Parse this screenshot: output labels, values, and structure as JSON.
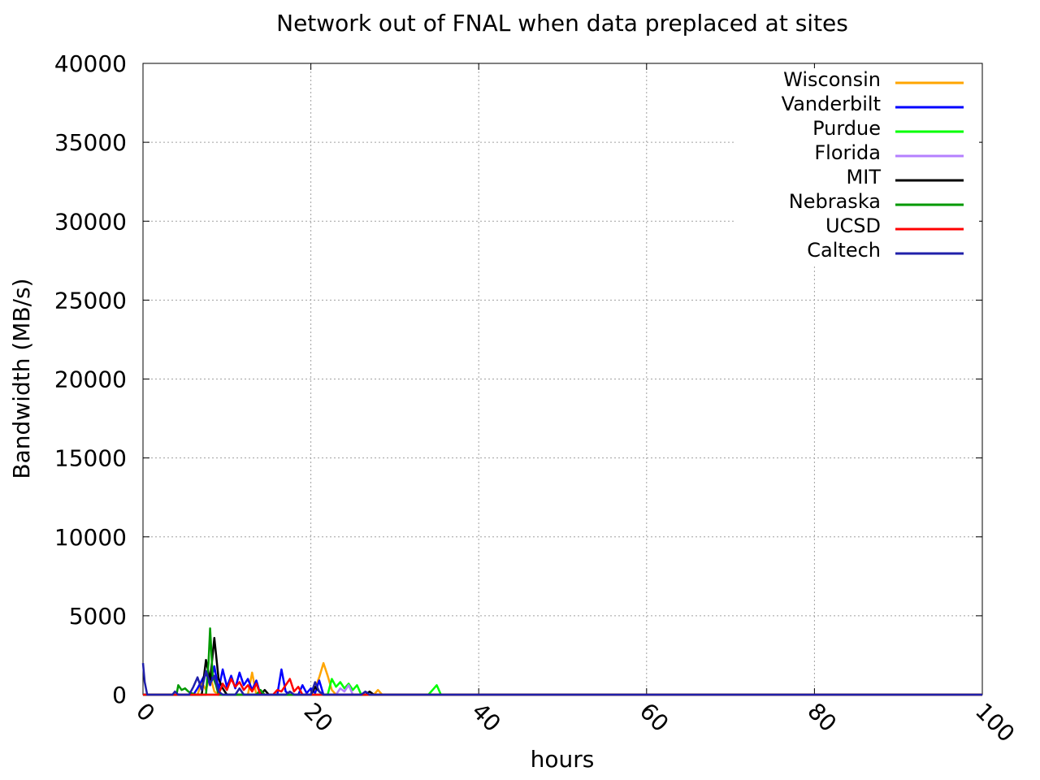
{
  "chart_data": {
    "type": "line",
    "title": "Network out of FNAL when data preplaced at sites",
    "xlabel": "hours",
    "ylabel": "Bandwidth (MB/s)",
    "xlim": [
      0,
      100
    ],
    "ylim": [
      0,
      40000
    ],
    "xticks": [
      "0",
      "20",
      "40",
      "60",
      "80",
      "100"
    ],
    "yticks": [
      "0",
      "5000",
      "10000",
      "15000",
      "20000",
      "25000",
      "30000",
      "35000",
      "40000"
    ],
    "grid": true,
    "legend_position": "top-right",
    "series": [
      {
        "name": "Wisconsin",
        "color": "#ffa500",
        "points": [
          [
            0,
            0
          ],
          [
            6.5,
            0
          ],
          [
            7,
            800
          ],
          [
            7.5,
            300
          ],
          [
            8,
            1200
          ],
          [
            8.5,
            200
          ],
          [
            9,
            0
          ],
          [
            12.5,
            0
          ],
          [
            13,
            1400
          ],
          [
            13.5,
            0
          ],
          [
            20,
            0
          ],
          [
            20.5,
            400
          ],
          [
            21,
            1100
          ],
          [
            21.5,
            2000
          ],
          [
            22,
            1200
          ],
          [
            22.5,
            300
          ],
          [
            23,
            0
          ],
          [
            27.5,
            0
          ],
          [
            28,
            300
          ],
          [
            28.5,
            0
          ],
          [
            100,
            0
          ]
        ]
      },
      {
        "name": "Vanderbilt",
        "color": "#0000ff",
        "points": [
          [
            0,
            0
          ],
          [
            6,
            0
          ],
          [
            6.5,
            400
          ],
          [
            7,
            900
          ],
          [
            7.5,
            1400
          ],
          [
            8,
            600
          ],
          [
            8.5,
            1800
          ],
          [
            9,
            300
          ],
          [
            9.5,
            1600
          ],
          [
            10,
            500
          ],
          [
            10.5,
            1200
          ],
          [
            11,
            400
          ],
          [
            11.5,
            1400
          ],
          [
            12,
            600
          ],
          [
            12.5,
            1000
          ],
          [
            13,
            300
          ],
          [
            13.5,
            900
          ],
          [
            14,
            0
          ],
          [
            16,
            0
          ],
          [
            16.5,
            1600
          ],
          [
            17,
            200
          ],
          [
            17.5,
            0
          ],
          [
            18.5,
            0
          ],
          [
            19,
            600
          ],
          [
            19.5,
            100
          ],
          [
            20,
            400
          ],
          [
            20.5,
            100
          ],
          [
            21,
            900
          ],
          [
            21.5,
            0
          ],
          [
            100,
            0
          ]
        ]
      },
      {
        "name": "Purdue",
        "color": "#00ff00",
        "points": [
          [
            0,
            0
          ],
          [
            22,
            0
          ],
          [
            22.5,
            1000
          ],
          [
            23,
            500
          ],
          [
            23.5,
            800
          ],
          [
            24,
            400
          ],
          [
            24.5,
            700
          ],
          [
            25,
            300
          ],
          [
            25.5,
            600
          ],
          [
            26,
            0
          ],
          [
            34,
            0
          ],
          [
            34.5,
            300
          ],
          [
            35,
            600
          ],
          [
            35.5,
            0
          ],
          [
            100,
            0
          ]
        ]
      },
      {
        "name": "Florida",
        "color": "#b480ff",
        "points": [
          [
            0,
            0
          ],
          [
            23,
            0
          ],
          [
            23.5,
            400
          ],
          [
            24,
            200
          ],
          [
            24.5,
            600
          ],
          [
            25,
            0
          ],
          [
            100,
            0
          ]
        ]
      },
      {
        "name": "MIT",
        "color": "#000000",
        "points": [
          [
            0,
            0
          ],
          [
            7,
            0
          ],
          [
            7.5,
            2200
          ],
          [
            8,
            900
          ],
          [
            8.5,
            3600
          ],
          [
            9,
            1000
          ],
          [
            9.5,
            400
          ],
          [
            10,
            0
          ],
          [
            14,
            0
          ],
          [
            14.5,
            300
          ],
          [
            15,
            0
          ],
          [
            20,
            0
          ],
          [
            20.5,
            500
          ],
          [
            21,
            200
          ],
          [
            21.5,
            0
          ],
          [
            26.5,
            0
          ],
          [
            27,
            200
          ],
          [
            27.5,
            0
          ],
          [
            100,
            0
          ]
        ]
      },
      {
        "name": "Nebraska",
        "color": "#009900",
        "points": [
          [
            0,
            0
          ],
          [
            4,
            0
          ],
          [
            4.2,
            600
          ],
          [
            4.6,
            300
          ],
          [
            5,
            400
          ],
          [
            5.4,
            200
          ],
          [
            5.8,
            100
          ],
          [
            6.2,
            0
          ],
          [
            7.5,
            0
          ],
          [
            7.8,
            2000
          ],
          [
            8,
            4200
          ],
          [
            8.3,
            1200
          ],
          [
            8.7,
            600
          ],
          [
            9,
            0
          ],
          [
            13.5,
            0
          ],
          [
            14,
            300
          ],
          [
            14.5,
            0
          ],
          [
            100,
            0
          ]
        ]
      },
      {
        "name": "UCSD",
        "color": "#ff0000",
        "points": [
          [
            0,
            0
          ],
          [
            9,
            0
          ],
          [
            9.5,
            700
          ],
          [
            10,
            300
          ],
          [
            10.5,
            1000
          ],
          [
            11,
            500
          ],
          [
            11.5,
            800
          ],
          [
            12,
            300
          ],
          [
            12.5,
            600
          ],
          [
            13,
            200
          ],
          [
            13.5,
            700
          ],
          [
            14,
            0
          ],
          [
            15.5,
            0
          ],
          [
            16,
            300
          ],
          [
            16.5,
            200
          ],
          [
            17,
            600
          ],
          [
            17.5,
            1000
          ],
          [
            18,
            200
          ],
          [
            18.5,
            500
          ],
          [
            19,
            0
          ],
          [
            100,
            0
          ]
        ]
      },
      {
        "name": "Caltech",
        "color": "#2020aa",
        "points": [
          [
            0,
            2000
          ],
          [
            0.2,
            800
          ],
          [
            0.5,
            0
          ],
          [
            3.5,
            0
          ],
          [
            3.8,
            200
          ],
          [
            4.2,
            0
          ],
          [
            5.5,
            0
          ],
          [
            6,
            500
          ],
          [
            6.5,
            1100
          ],
          [
            7,
            300
          ],
          [
            7.5,
            1500
          ],
          [
            8,
            700
          ],
          [
            8.5,
            1200
          ],
          [
            9,
            200
          ],
          [
            9.5,
            0
          ],
          [
            11,
            0
          ],
          [
            11.5,
            400
          ],
          [
            12,
            0
          ],
          [
            17,
            0
          ],
          [
            17.5,
            200
          ],
          [
            18,
            0
          ],
          [
            20,
            0
          ],
          [
            20.5,
            800
          ],
          [
            21,
            200
          ],
          [
            21.5,
            0
          ],
          [
            26,
            0
          ],
          [
            26.5,
            200
          ],
          [
            27,
            0
          ],
          [
            100,
            0
          ]
        ]
      }
    ]
  }
}
